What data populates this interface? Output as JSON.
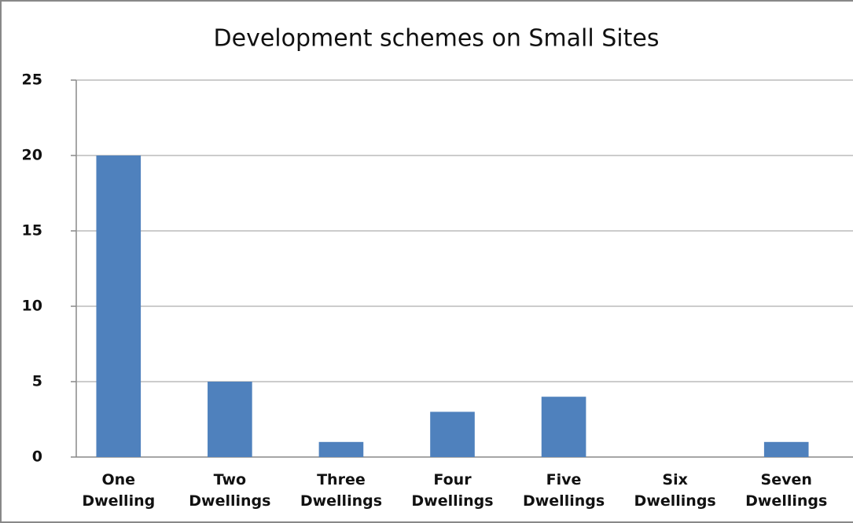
{
  "chart_data": {
    "type": "bar",
    "title": "Development schemes on Small Sites",
    "categories": [
      "One Dwelling",
      "Two Dwellings",
      "Three Dwellings",
      "Four Dwellings",
      "Five Dwellings",
      "Six Dwellings",
      "Seven Dwellings"
    ],
    "values": [
      20,
      5,
      1,
      3,
      4,
      0,
      1
    ],
    "color": "#4f81bd",
    "ylim": [
      0,
      25
    ],
    "yticks": [
      0,
      5,
      10,
      15,
      20,
      25
    ],
    "grid": true
  }
}
